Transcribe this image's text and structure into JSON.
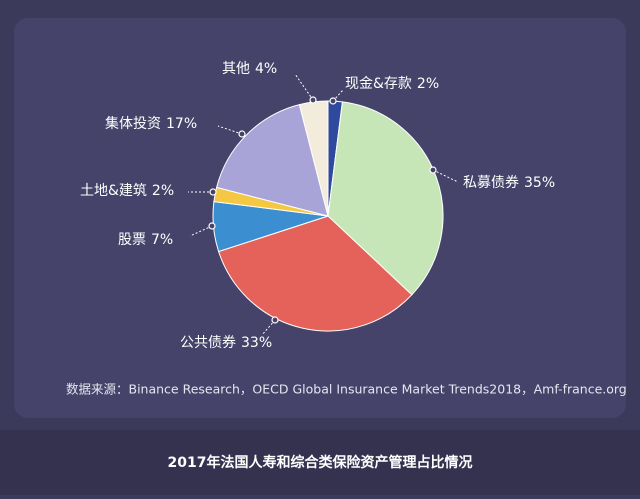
{
  "chart_data": {
    "type": "pie",
    "caption": "2017年法国人寿和综合类保险资产管理占比情况",
    "source": "数据来源：Binance Research，OECD Global Insurance Market Trends2018，Amf-france.org",
    "categories": [
      "现金&存款",
      "私募债券",
      "公共债券",
      "股票",
      "土地&建筑",
      "集体投资",
      "其他"
    ],
    "values": [
      2,
      35,
      33,
      7,
      2,
      17,
      4
    ],
    "value_labels": [
      "2%",
      "35%",
      "33%",
      "7%",
      "2%",
      "17%",
      "4%"
    ],
    "colors": [
      "#2f4a9c",
      "#c7e6b8",
      "#e5625a",
      "#3b8fd1",
      "#f4c843",
      "#a9a4d8",
      "#f3ebdb"
    ]
  }
}
